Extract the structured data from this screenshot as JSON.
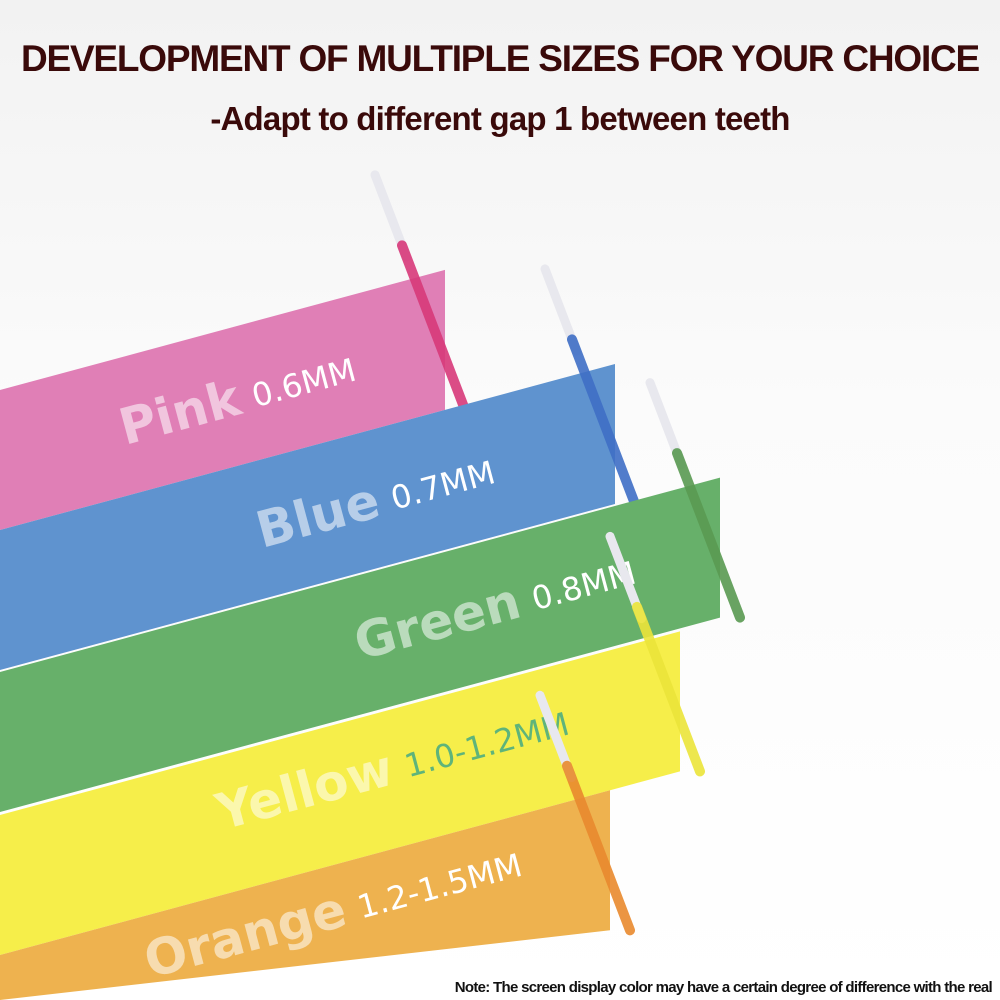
{
  "heading": {
    "title": "DEVELOPMENT OF MULTIPLE SIZES FOR YOUR CHOICE",
    "subtitle": "-Adapt to different gap 1 between teeth"
  },
  "bands": [
    {
      "color_name": "Pink",
      "size": "0.6MM",
      "color": "#e07fb6",
      "stick": "#d83a7a",
      "size_color": "#ffffff"
    },
    {
      "color_name": "Blue",
      "size": "0.7MM",
      "color": "#5f93cf",
      "stick": "#3f6fc6",
      "size_color": "#ffffff"
    },
    {
      "color_name": "Green",
      "size": "0.8MM",
      "color": "#67b06a",
      "stick": "#5a9a52",
      "size_color": "#ffffff"
    },
    {
      "color_name": "Yellow",
      "size": "1.0-1.2MM",
      "color": "#f6ee4a",
      "stick": "#ece53a",
      "size_color": "#5fb47a"
    },
    {
      "color_name": "Orange",
      "size": "1.2-1.5MM",
      "color": "#eeb24f",
      "stick": "#e98a2e",
      "size_color": "#ffffff"
    }
  ],
  "note": "Note: The screen display color may have a certain degree of difference with the real"
}
